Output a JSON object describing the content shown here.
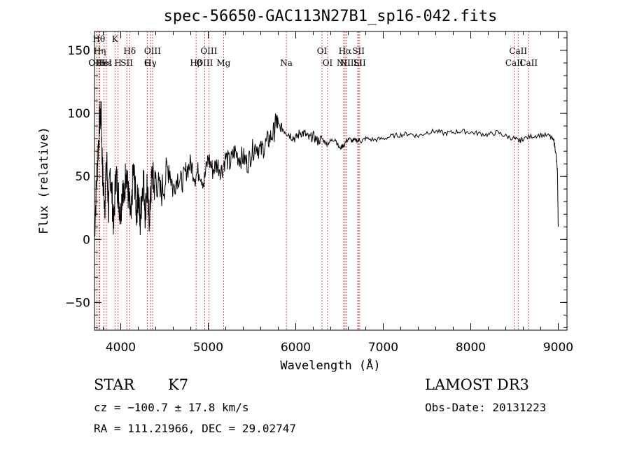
{
  "chart_data": {
    "type": "line",
    "title": "spec-56650-GAC113N27B1_sp16-042.fits",
    "xlabel": "Wavelength (Å)",
    "ylabel": "Flux (relative)",
    "xlim": [
      3700,
      9100
    ],
    "ylim": [
      -72,
      165
    ],
    "xticks": [
      4000,
      5000,
      6000,
      7000,
      8000,
      9000
    ],
    "yticks": [
      -50,
      0,
      50,
      100,
      150
    ],
    "series": [
      {
        "name": "flux",
        "x": [
          3700,
          3720,
          3740,
          3760,
          3775,
          3790,
          3800,
          3820,
          3840,
          3860,
          3880,
          3900,
          3920,
          3940,
          3960,
          3980,
          4000,
          4020,
          4040,
          4060,
          4080,
          4100,
          4120,
          4140,
          4160,
          4180,
          4200,
          4220,
          4240,
          4260,
          4280,
          4300,
          4320,
          4340,
          4360,
          4380,
          4400,
          4450,
          4500,
          4550,
          4600,
          4650,
          4700,
          4750,
          4800,
          4850,
          4900,
          4950,
          5000,
          5050,
          5100,
          5150,
          5200,
          5250,
          5300,
          5350,
          5400,
          5450,
          5500,
          5550,
          5600,
          5650,
          5700,
          5750,
          5780,
          5800,
          5850,
          5900,
          5950,
          6000,
          6050,
          6100,
          6150,
          6200,
          6250,
          6300,
          6350,
          6400,
          6450,
          6500,
          6550,
          6600,
          6650,
          6700,
          6750,
          6800,
          6900,
          7000,
          7100,
          7200,
          7300,
          7400,
          7500,
          7600,
          7700,
          7800,
          7900,
          8000,
          8100,
          8200,
          8300,
          8400,
          8500,
          8550,
          8600,
          8700,
          8800,
          8900,
          8950,
          8970,
          8990,
          9000
        ],
        "y": [
          5,
          40,
          70,
          95,
          100,
          60,
          40,
          30,
          65,
          20,
          55,
          35,
          10,
          50,
          45,
          30,
          20,
          45,
          30,
          60,
          40,
          25,
          15,
          55,
          45,
          20,
          40,
          10,
          35,
          50,
          20,
          45,
          15,
          30,
          55,
          40,
          50,
          35,
          45,
          60,
          40,
          50,
          45,
          55,
          60,
          50,
          55,
          45,
          65,
          55,
          60,
          55,
          65,
          60,
          70,
          65,
          65,
          60,
          70,
          75,
          70,
          75,
          80,
          85,
          95,
          90,
          88,
          85,
          82,
          80,
          85,
          84,
          80,
          82,
          78,
          80,
          76,
          78,
          80,
          72,
          75,
          80,
          78,
          79,
          78,
          80,
          79,
          80,
          82,
          83,
          84,
          82,
          85,
          86,
          84,
          85,
          86,
          85,
          84,
          83,
          85,
          82,
          80,
          78,
          80,
          82,
          83,
          82,
          78,
          70,
          55,
          10
        ]
      }
    ],
    "lines": [
      {
        "name": "OIII",
        "x": 3727,
        "row": 2
      },
      {
        "name": "Hθ",
        "x": 3750,
        "row": 0
      },
      {
        "name": "Hη",
        "x": 3760,
        "row": 1
      },
      {
        "name": "OIII",
        "x": 3727,
        "row": 3
      },
      {
        "name": "HeI",
        "x": 3810,
        "row": 2
      },
      {
        "name": "Hε",
        "x": 3835,
        "row": 2
      },
      {
        "name": "K",
        "x": 3934,
        "row": 0
      },
      {
        "name": "H",
        "x": 3969,
        "row": 3
      },
      {
        "name": "SII",
        "x": 4069,
        "row": 2
      },
      {
        "name": "Hδ",
        "x": 4102,
        "row": 1
      },
      {
        "name": "OIII",
        "x": 4363,
        "row": 1
      },
      {
        "name": "Hγ",
        "x": 4340,
        "row": 2
      },
      {
        "name": "G",
        "x": 4305,
        "row": 3
      },
      {
        "name": "Hβ",
        "x": 4861,
        "row": 3
      },
      {
        "name": "OIII",
        "x": 4959,
        "row": 2
      },
      {
        "name": "OIII",
        "x": 5007,
        "row": 1
      },
      {
        "name": "Mg",
        "x": 5175,
        "row": 3
      },
      {
        "name": "Na",
        "x": 5893,
        "row": 2
      },
      {
        "name": "OI",
        "x": 6300,
        "row": 1
      },
      {
        "name": "OI",
        "x": 6364,
        "row": 3
      },
      {
        "name": "Hα",
        "x": 6563,
        "row": 1
      },
      {
        "name": "NII",
        "x": 6548,
        "row": 2
      },
      {
        "name": "NII",
        "x": 6584,
        "row": 3
      },
      {
        "name": "SII",
        "x": 6717,
        "row": 1
      },
      {
        "name": "Li",
        "x": 6708,
        "row": 2
      },
      {
        "name": "SII",
        "x": 6731,
        "row": 3
      },
      {
        "name": "CaII",
        "x": 8498,
        "row": 2
      },
      {
        "name": "CaII",
        "x": 8542,
        "row": 1
      },
      {
        "name": "CaII",
        "x": 8662,
        "row": 3
      }
    ],
    "line_color": "#cc2222"
  },
  "info": {
    "class_label": "STAR",
    "subclass_label": "K7",
    "survey": "LAMOST DR3",
    "cz": "cz = −100.7 ± 17.8 km/s",
    "obs_date": "Obs-Date: 20131223",
    "radec": "RA = 111.21966, DEC =  29.02747"
  }
}
